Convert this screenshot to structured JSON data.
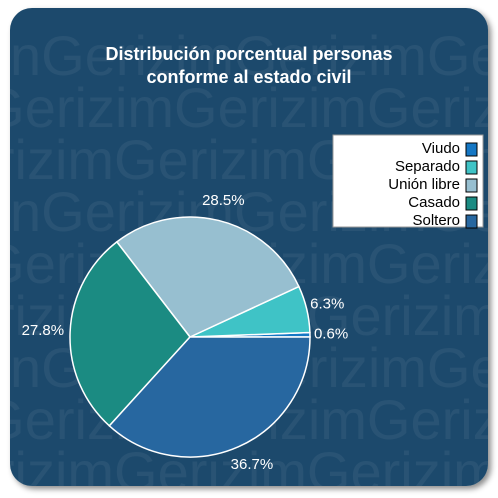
{
  "chart_data": {
    "type": "pie",
    "title": [
      "Distribución porcentual personas",
      "conforme al estado civil"
    ],
    "watermark": "nGerizimGerizimGerizim",
    "categories": [
      "Viudo",
      "Separado",
      "Unión libre",
      "Casado",
      "Soltero"
    ],
    "values": [
      0.6,
      6.3,
      28.5,
      27.8,
      36.7
    ],
    "value_labels": [
      "0.6%",
      "6.3%",
      "28.5%",
      "27.8%",
      "36.7%"
    ],
    "colors": [
      "#1577c4",
      "#3fc3c6",
      "#97bfd0",
      "#1b8b82",
      "#2767a0"
    ],
    "legend": "top-right"
  }
}
